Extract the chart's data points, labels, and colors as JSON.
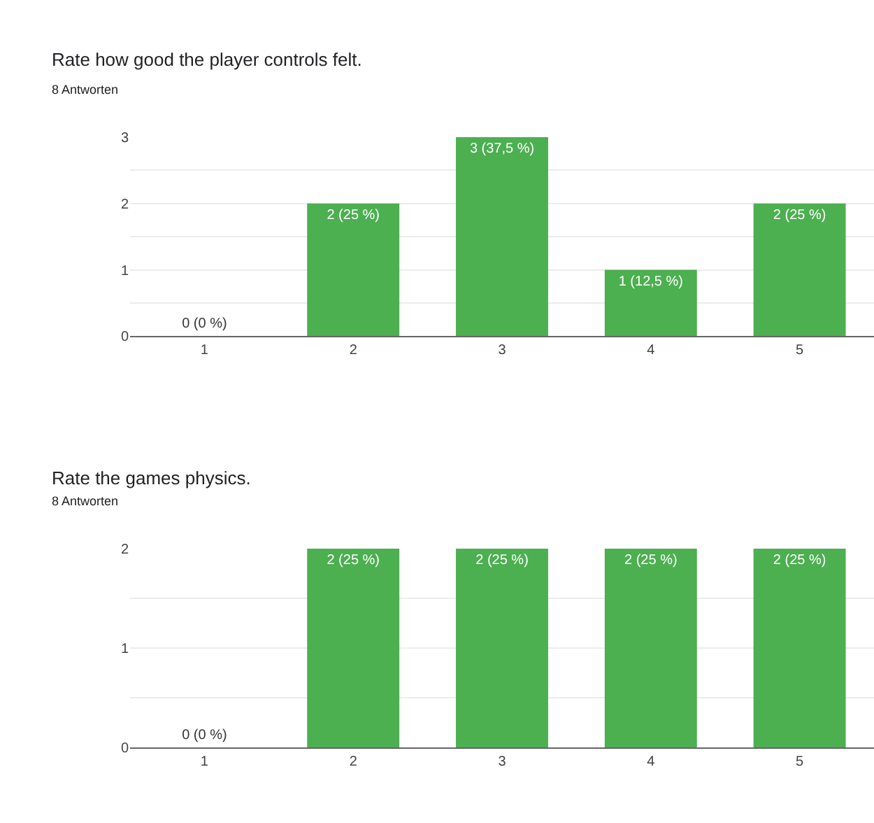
{
  "chart_data": [
    {
      "type": "bar",
      "title": "Rate how good the player controls felt.",
      "subtitle": "8 Antworten",
      "categories": [
        "1",
        "2",
        "3",
        "4",
        "5"
      ],
      "values": [
        0,
        2,
        3,
        1,
        2
      ],
      "value_labels": [
        "0 (0 %)",
        "2 (25 %)",
        "3 (37,5 %)",
        "1 (12,5 %)",
        "2 (25 %)"
      ],
      "color": "#4caf50",
      "ylim": [
        0,
        3
      ],
      "yticks": [
        0,
        {
          "value": 0.5,
          "label": null
        },
        1,
        {
          "value": 1.5,
          "label": null
        },
        2,
        {
          "value": 2.5,
          "label": null
        },
        3
      ],
      "grid": "y"
    },
    {
      "type": "bar",
      "title": "Rate the games physics.",
      "subtitle": "8 Antworten",
      "categories": [
        "1",
        "2",
        "3",
        "4",
        "5"
      ],
      "values": [
        0,
        2,
        2,
        2,
        2
      ],
      "value_labels": [
        "0 (0 %)",
        "2 (25 %)",
        "2 (25 %)",
        "2 (25 %)",
        "2 (25 %)"
      ],
      "color": "#4caf50",
      "ylim": [
        0,
        2
      ],
      "yticks": [
        0,
        {
          "value": 0.5,
          "label": null
        },
        1,
        {
          "value": 1.5,
          "label": null
        },
        2
      ],
      "grid": "y"
    }
  ]
}
